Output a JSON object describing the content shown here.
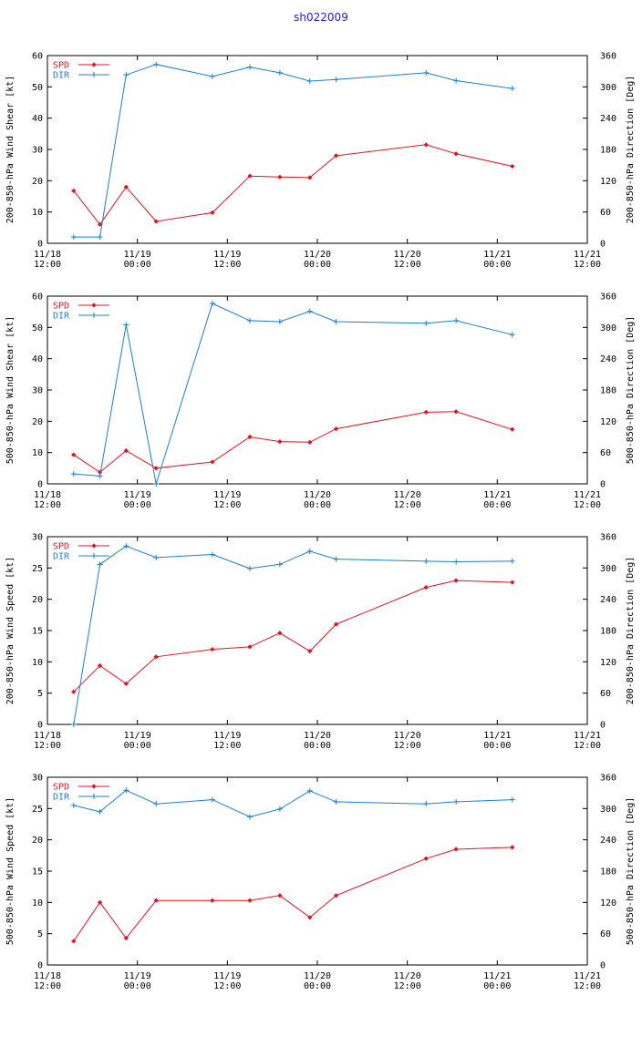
{
  "page_title": "sh022009",
  "x_ticks": [
    {
      "day": "11/18",
      "time": "12:00"
    },
    {
      "day": "11/19",
      "time": "00:00"
    },
    {
      "day": "11/19",
      "time": "12:00"
    },
    {
      "day": "11/20",
      "time": "00:00"
    },
    {
      "day": "11/20",
      "time": "12:00"
    },
    {
      "day": "11/21",
      "time": "00:00"
    },
    {
      "day": "11/21",
      "time": "12:00"
    }
  ],
  "colors": {
    "spd": "#e8101e",
    "dir": "#1a7fd4"
  },
  "chart_data": [
    {
      "type": "line",
      "ylabel": "200-850-hPa Wind Shear [kt]",
      "y2label": "200-850-hPa Direction [Deg]",
      "ylim": [
        0,
        60
      ],
      "yticks": [
        0,
        10,
        20,
        30,
        40,
        50,
        60
      ],
      "y2lim": [
        0,
        360
      ],
      "y2ticks": [
        0,
        60,
        120,
        180,
        240,
        300,
        360
      ],
      "xlim_hours": [
        0,
        72
      ],
      "x_hours": [
        3.5,
        7,
        10.5,
        14.5,
        22,
        27,
        31,
        35,
        38.5,
        50.5,
        54.5,
        62
      ],
      "series": [
        {
          "name": "SPD",
          "axis": "left",
          "values": [
            16.8,
            6.0,
            18.0,
            7.0,
            9.8,
            21.5,
            21.2,
            21.0,
            28.0,
            31.5,
            28.6,
            24.6
          ]
        },
        {
          "name": "DIR",
          "axis": "right",
          "values": [
            12,
            12,
            323,
            343,
            320,
            338,
            327,
            311,
            314,
            327,
            312,
            297
          ]
        }
      ]
    },
    {
      "type": "line",
      "ylabel": "500-850-hPa Wind Shear [kt]",
      "y2label": "500-850-hPa Direction [Deg]",
      "ylim": [
        0,
        60
      ],
      "yticks": [
        0,
        10,
        20,
        30,
        40,
        50,
        60
      ],
      "y2lim": [
        0,
        360
      ],
      "y2ticks": [
        0,
        60,
        120,
        180,
        240,
        300,
        360
      ],
      "xlim_hours": [
        0,
        72
      ],
      "x_hours": [
        3.5,
        7,
        10.5,
        14.5,
        22,
        27,
        31,
        35,
        38.5,
        50.5,
        54.5,
        62
      ],
      "series": [
        {
          "name": "SPD",
          "axis": "left",
          "values": [
            9.3,
            3.7,
            10.6,
            5.0,
            7.0,
            15.0,
            13.5,
            13.3,
            17.6,
            22.9,
            23.1,
            17.4
          ]
        },
        {
          "name": "DIR",
          "axis": "right",
          "values": [
            19,
            15,
            305,
            0,
            346,
            313,
            311,
            331,
            311,
            308,
            313,
            286
          ]
        }
      ]
    },
    {
      "type": "line",
      "ylabel": "200-850-hPa Wind Speed [kt]",
      "y2label": "200-850-hPa Direction [Deg]",
      "ylim": [
        0,
        30
      ],
      "yticks": [
        0,
        5,
        10,
        15,
        20,
        25,
        30
      ],
      "y2lim": [
        0,
        360
      ],
      "y2ticks": [
        0,
        60,
        120,
        180,
        240,
        300,
        360
      ],
      "xlim_hours": [
        0,
        72
      ],
      "x_hours": [
        3.5,
        7,
        10.5,
        14.5,
        22,
        27,
        31,
        35,
        38.5,
        50.5,
        54.5,
        62
      ],
      "series": [
        {
          "name": "SPD",
          "axis": "left",
          "values": [
            5.2,
            9.4,
            6.5,
            10.8,
            12.0,
            12.4,
            14.6,
            11.7,
            16.0,
            21.9,
            23.0,
            22.7
          ]
        },
        {
          "name": "DIR",
          "axis": "right",
          "values": [
            0,
            307,
            342,
            320,
            326,
            299,
            307,
            332,
            317,
            313,
            312,
            313
          ]
        }
      ]
    },
    {
      "type": "line",
      "ylabel": "500-850-hPa Wind Speed [kt]",
      "y2label": "500-850-hPa Direction [Deg]",
      "ylim": [
        0,
        30
      ],
      "yticks": [
        0,
        5,
        10,
        15,
        20,
        25,
        30
      ],
      "y2lim": [
        0,
        360
      ],
      "y2ticks": [
        0,
        60,
        120,
        180,
        240,
        300,
        360
      ],
      "xlim_hours": [
        0,
        72
      ],
      "x_hours": [
        3.5,
        7,
        10.5,
        14.5,
        22,
        27,
        31,
        35,
        38.5,
        50.5,
        54.5,
        62
      ],
      "series": [
        {
          "name": "SPD",
          "axis": "left",
          "values": [
            3.8,
            10.0,
            4.3,
            10.3,
            10.3,
            10.3,
            11.1,
            7.6,
            11.1,
            17.0,
            18.5,
            18.8
          ]
        },
        {
          "name": "DIR",
          "axis": "right",
          "values": [
            306,
            294,
            335,
            309,
            317,
            284,
            299,
            334,
            313,
            309,
            313,
            317
          ]
        }
      ]
    }
  ]
}
